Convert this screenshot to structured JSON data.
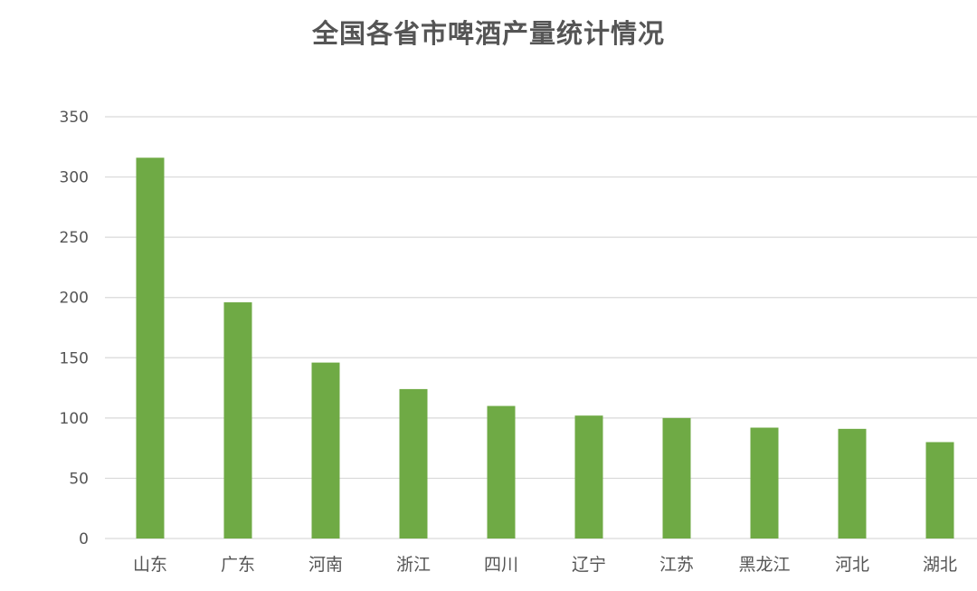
{
  "chart_data": {
    "type": "bar",
    "title": "全国各省市啤酒产量统计情况",
    "xlabel": "",
    "ylabel": "",
    "categories": [
      "山东",
      "广东",
      "河南",
      "浙江",
      "四川",
      "辽宁",
      "江苏",
      "黑龙江",
      "河北",
      "湖北"
    ],
    "values": [
      316,
      196,
      146,
      124,
      110,
      102,
      100,
      92,
      91,
      80
    ],
    "ylim": [
      0,
      350
    ],
    "yticks": [
      "0",
      "50",
      "100",
      "150",
      "200",
      "250",
      "300",
      "350"
    ],
    "grid": true,
    "legend": "none",
    "colors": {
      "bar": "#6faa45",
      "grid": "#d9d9d9",
      "text": "#555555"
    }
  }
}
